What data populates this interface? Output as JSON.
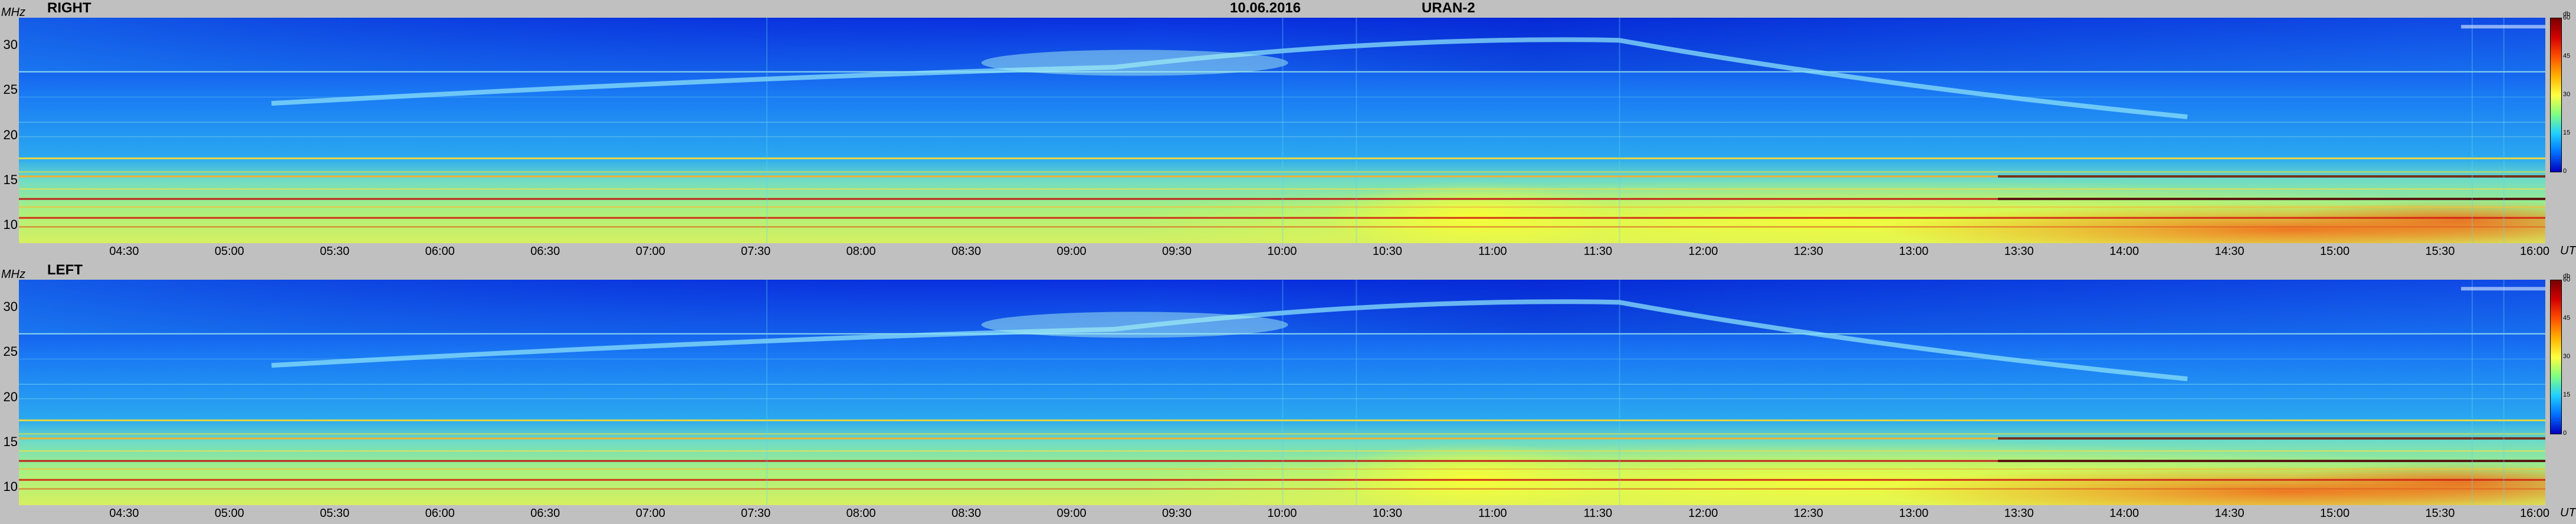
{
  "header": {
    "date": "10.06.2016",
    "station": "URAN-2"
  },
  "chart_data": [
    {
      "type": "heatmap",
      "title": "RIGHT",
      "ylabel": "MHz",
      "xlabel": "UT",
      "ylim": [
        8,
        33
      ],
      "yticks": [
        "30",
        "25",
        "20",
        "15",
        "10"
      ],
      "xticks": [
        "04:30",
        "05:00",
        "05:30",
        "06:00",
        "06:30",
        "07:00",
        "07:30",
        "08:00",
        "08:30",
        "09:00",
        "09:30",
        "10:00",
        "10:30",
        "11:00",
        "11:30",
        "12:00",
        "12:30",
        "13:00",
        "13:30",
        "14:00",
        "14:30",
        "15:00",
        "15:30",
        "16:00"
      ],
      "colorbar": {
        "unit": "db",
        "ticks": [
          "60",
          "45",
          "30",
          "15",
          "0"
        ],
        "range": [
          0,
          60
        ]
      }
    },
    {
      "type": "heatmap",
      "title": "LEFT",
      "ylabel": "MHz",
      "xlabel": "UT",
      "ylim": [
        8,
        33
      ],
      "yticks": [
        "30",
        "25",
        "20",
        "15",
        "10"
      ],
      "xticks": [
        "04:30",
        "05:00",
        "05:30",
        "06:00",
        "06:30",
        "07:00",
        "07:30",
        "08:00",
        "08:30",
        "09:00",
        "09:30",
        "10:00",
        "10:30",
        "11:00",
        "11:30",
        "12:00",
        "12:30",
        "13:00",
        "13:30",
        "14:00",
        "14:30",
        "15:00",
        "15:30",
        "16:00"
      ],
      "colorbar": {
        "unit": "db",
        "ticks": [
          "60",
          "45",
          "30",
          "15",
          "0"
        ],
        "range": [
          0,
          60
        ]
      }
    }
  ]
}
